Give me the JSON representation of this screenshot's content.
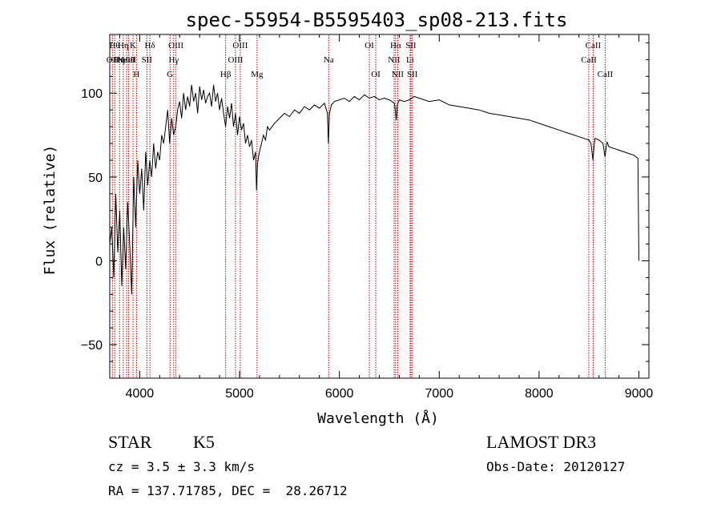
{
  "chart_data": {
    "type": "line",
    "title": "spec-55954-B5595403_sp08-213.fits",
    "xlabel": "Wavelength (Å)",
    "ylabel": "Flux (relative)",
    "xlim": [
      3700,
      9100
    ],
    "ylim": [
      -70,
      135
    ],
    "xticks": [
      4000,
      5000,
      6000,
      7000,
      8000,
      9000
    ],
    "yticks": [
      -50,
      0,
      50,
      100
    ],
    "xtick_labels": [
      "4000",
      "5000",
      "6000",
      "7000",
      "8000",
      "9000"
    ],
    "ytick_labels": [
      "−50",
      "0",
      "50",
      "100"
    ],
    "line_color": "#000000",
    "marker_color": "#cc0000",
    "series": [
      {
        "name": "spectrum",
        "x": [
          3700,
          3720,
          3740,
          3760,
          3780,
          3800,
          3820,
          3840,
          3860,
          3880,
          3900,
          3920,
          3940,
          3960,
          3980,
          4000,
          4020,
          4040,
          4060,
          4080,
          4100,
          4120,
          4140,
          4160,
          4180,
          4200,
          4220,
          4240,
          4260,
          4280,
          4300,
          4320,
          4340,
          4360,
          4380,
          4400,
          4420,
          4440,
          4460,
          4480,
          4500,
          4520,
          4540,
          4560,
          4580,
          4600,
          4620,
          4640,
          4660,
          4680,
          4700,
          4720,
          4740,
          4760,
          4780,
          4800,
          4820,
          4840,
          4860,
          4880,
          4900,
          4920,
          4940,
          4960,
          4980,
          5000,
          5020,
          5040,
          5060,
          5080,
          5100,
          5120,
          5140,
          5160,
          5170,
          5180,
          5190,
          5200,
          5220,
          5240,
          5260,
          5280,
          5300,
          5350,
          5400,
          5450,
          5500,
          5550,
          5600,
          5650,
          5700,
          5750,
          5800,
          5850,
          5880,
          5890,
          5900,
          5920,
          5950,
          6000,
          6050,
          6100,
          6150,
          6200,
          6250,
          6300,
          6350,
          6400,
          6450,
          6500,
          6550,
          6560,
          6570,
          6580,
          6600,
          6650,
          6700,
          6750,
          6800,
          6900,
          7000,
          7100,
          7200,
          7300,
          7400,
          7500,
          7600,
          7700,
          7800,
          7900,
          8000,
          8100,
          8200,
          8300,
          8400,
          8450,
          8500,
          8520,
          8540,
          8550,
          8560,
          8600,
          8640,
          8660,
          8680,
          8700,
          8750,
          8800,
          8850,
          8900,
          8950,
          8970,
          8990,
          8995,
          9000
        ],
        "y": [
          10,
          20,
          -10,
          40,
          5,
          30,
          -15,
          20,
          -5,
          35,
          10,
          -20,
          50,
          20,
          60,
          40,
          55,
          30,
          65,
          45,
          60,
          50,
          70,
          55,
          65,
          60,
          75,
          70,
          80,
          90,
          70,
          85,
          75,
          80,
          90,
          95,
          85,
          100,
          90,
          98,
          92,
          105,
          95,
          100,
          88,
          104,
          96,
          102,
          94,
          98,
          100,
          92,
          105,
          95,
          100,
          90,
          97,
          88,
          80,
          92,
          85,
          94,
          80,
          88,
          75,
          86,
          78,
          82,
          70,
          75,
          68,
          72,
          60,
          65,
          42,
          58,
          62,
          65,
          70,
          75,
          72,
          80,
          78,
          82,
          85,
          88,
          86,
          90,
          88,
          92,
          90,
          93,
          91,
          94,
          88,
          70,
          88,
          93,
          95,
          96,
          97,
          95,
          98,
          96,
          99,
          97,
          98,
          96,
          97,
          96,
          94,
          90,
          84,
          93,
          96,
          95,
          96,
          98,
          97,
          95,
          96,
          93,
          92,
          91,
          90,
          88,
          87,
          86,
          85,
          84,
          82,
          80,
          78,
          76,
          74,
          73,
          72,
          70,
          60,
          68,
          73,
          72,
          70,
          62,
          71,
          68,
          67,
          66,
          65,
          64,
          63,
          62,
          61,
          30,
          0
        ]
      }
    ],
    "line_markers": [
      {
        "wl": 3727,
        "row": 1,
        "label": "OII"
      },
      {
        "wl": 3750,
        "row": 0,
        "label": "Hθ"
      },
      {
        "wl": 3798,
        "row": 1,
        "label": "Hη"
      },
      {
        "wl": 3835,
        "row": 0,
        "label": "Hη"
      },
      {
        "wl": 3869,
        "row": 1,
        "label": "NeIII"
      },
      {
        "wl": 3889,
        "row": 1,
        "label": "HeI"
      },
      {
        "wl": 3933,
        "row": 0,
        "label": "K"
      },
      {
        "wl": 3968,
        "row": 2,
        "label": "H"
      },
      {
        "wl": 4072,
        "row": 1,
        "label": "SII"
      },
      {
        "wl": 4102,
        "row": 0,
        "label": "Hδ"
      },
      {
        "wl": 4304,
        "row": 2,
        "label": "G"
      },
      {
        "wl": 4341,
        "row": 1,
        "label": "Hγ"
      },
      {
        "wl": 4363,
        "row": 0,
        "label": "OIII"
      },
      {
        "wl": 4861,
        "row": 2,
        "label": "Hβ"
      },
      {
        "wl": 4959,
        "row": 1,
        "label": "OIII"
      },
      {
        "wl": 5007,
        "row": 0,
        "label": "OIII"
      },
      {
        "wl": 5175,
        "row": 2,
        "label": "Mg"
      },
      {
        "wl": 5893,
        "row": 1,
        "label": "Na"
      },
      {
        "wl": 6300,
        "row": 0,
        "label": "OI"
      },
      {
        "wl": 6364,
        "row": 2,
        "label": "OI"
      },
      {
        "wl": 6548,
        "row": 1,
        "label": "NII"
      },
      {
        "wl": 6563,
        "row": 0,
        "label": "Hα"
      },
      {
        "wl": 6584,
        "row": 2,
        "label": "NII"
      },
      {
        "wl": 6708,
        "row": 1,
        "label": "Li"
      },
      {
        "wl": 6716,
        "row": 0,
        "label": "SII"
      },
      {
        "wl": 6731,
        "row": 2,
        "label": "SII"
      },
      {
        "wl": 8498,
        "row": 1,
        "label": "CaII"
      },
      {
        "wl": 8542,
        "row": 0,
        "label": "CaII"
      },
      {
        "wl": 8662,
        "row": 2,
        "label": "CaII"
      }
    ]
  },
  "info": {
    "class": "STAR",
    "subclass": "K5",
    "survey": "LAMOST DR3",
    "cz": "cz = 3.5 ± 3.3 km/s",
    "obs_date": "Obs-Date: 20120127",
    "radec": "RA = 137.71785, DEC =  28.26712"
  }
}
